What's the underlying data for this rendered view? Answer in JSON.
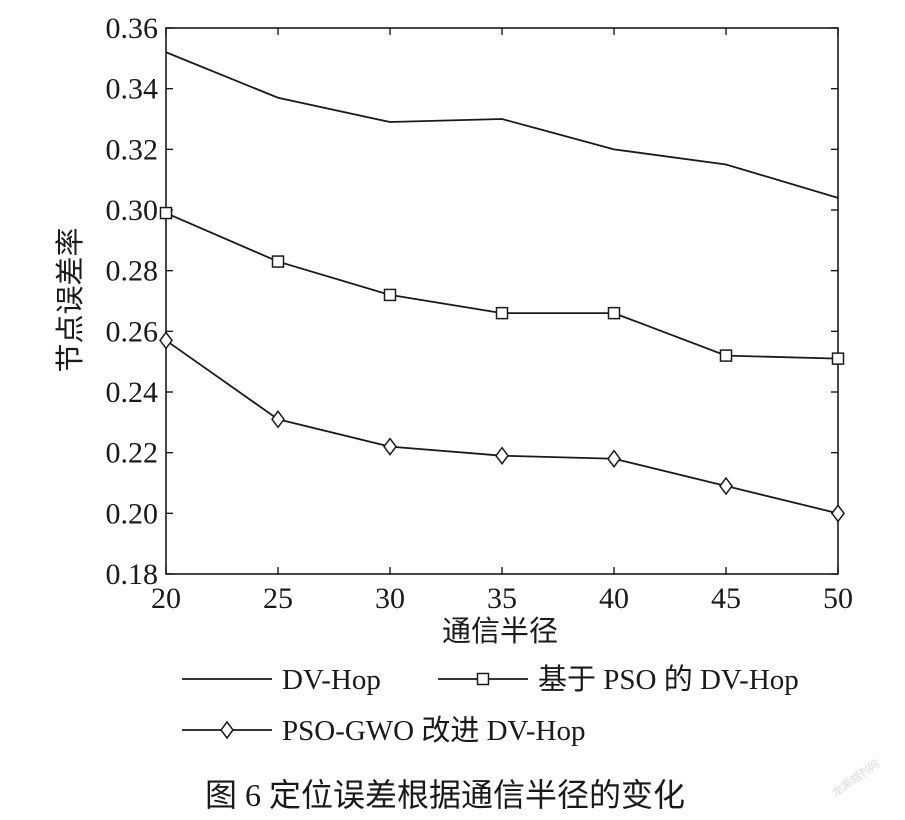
{
  "chart_data": {
    "type": "line",
    "xlabel": "通信半径",
    "ylabel": "节点误差率",
    "xlim": [
      20,
      50
    ],
    "ylim": [
      0.18,
      0.36
    ],
    "x_ticks": [
      "20",
      "25",
      "30",
      "35",
      "40",
      "45",
      "50"
    ],
    "y_ticks": [
      "0.18",
      "0.20",
      "0.22",
      "0.24",
      "0.26",
      "0.28",
      "0.30",
      "0.32",
      "0.34",
      "0.36"
    ],
    "grid": false,
    "legend_position": "bottom",
    "x": [
      20,
      25,
      30,
      35,
      40,
      45,
      50
    ],
    "series": [
      {
        "name": "DV-Hop",
        "marker": "none",
        "values": [
          0.352,
          0.337,
          0.329,
          0.33,
          0.32,
          0.315,
          0.304
        ]
      },
      {
        "name": "基于 PSO 的 DV-Hop",
        "marker": "square",
        "values": [
          0.299,
          0.283,
          0.272,
          0.266,
          0.266,
          0.252,
          0.251
        ]
      },
      {
        "name": "PSO-GWO 改进 DV-Hop",
        "marker": "diamond",
        "values": [
          0.257,
          0.231,
          0.222,
          0.219,
          0.218,
          0.209,
          0.2
        ]
      }
    ],
    "line_color": "#1a1a1a"
  },
  "caption": "图 6 定位误差根据通信半径的变化",
  "watermark": "龙源期刊网"
}
